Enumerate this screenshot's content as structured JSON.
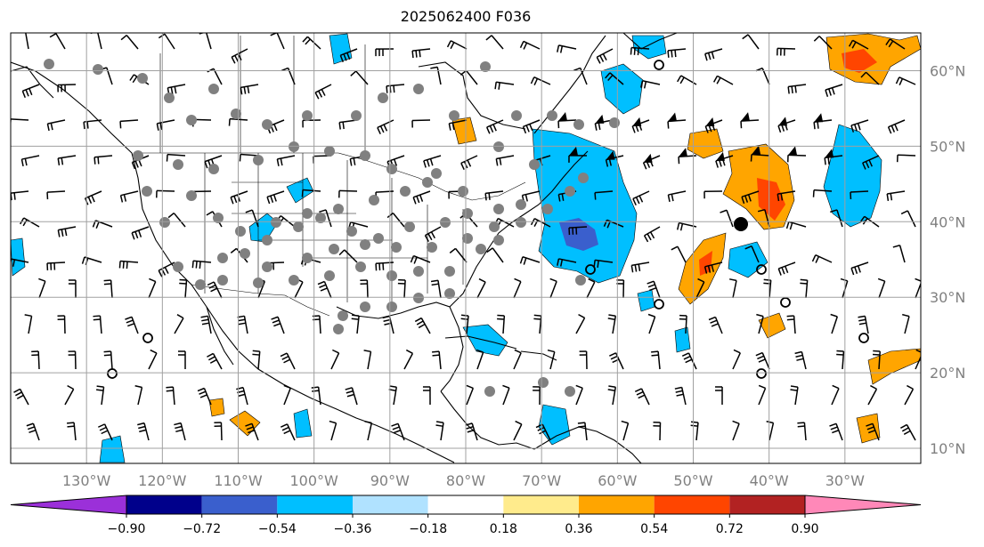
{
  "title": "2025062400 F036",
  "map": {
    "lon_range": [
      -140,
      -20
    ],
    "lat_range": [
      8,
      65
    ],
    "lon_ticks": [
      {
        "value": -130,
        "label": "130°W"
      },
      {
        "value": -120,
        "label": "120°W"
      },
      {
        "value": -110,
        "label": "110°W"
      },
      {
        "value": -100,
        "label": "100°W"
      },
      {
        "value": -90,
        "label": "90°W"
      },
      {
        "value": -80,
        "label": "80°W"
      },
      {
        "value": -70,
        "label": "70°W"
      },
      {
        "value": -60,
        "label": "60°W"
      },
      {
        "value": -50,
        "label": "50°W"
      },
      {
        "value": -40,
        "label": "40°W"
      },
      {
        "value": -30,
        "label": "30°W"
      }
    ],
    "lat_ticks": [
      {
        "value": 60,
        "label": "60°N"
      },
      {
        "value": 50,
        "label": "50°N"
      },
      {
        "value": 40,
        "label": "40°N"
      },
      {
        "value": 30,
        "label": "30°N"
      },
      {
        "value": 20,
        "label": "20°N"
      },
      {
        "value": 10,
        "label": "10°N"
      }
    ],
    "gridlines": true,
    "tick_label_color": "#808080"
  },
  "colorbar": {
    "levels": [
      "−0.90",
      "−0.72",
      "−0.54",
      "−0.36",
      "−0.18",
      "0.18",
      "0.36",
      "0.54",
      "0.72",
      "0.90"
    ],
    "colors": [
      "#9b30d9",
      "#00008b",
      "#3a5fcd",
      "#00bfff",
      "#b0e2ff",
      "#ffffff",
      "#ffeb8c",
      "#ffa500",
      "#ff4500",
      "#b22222",
      "#ff88b8"
    ],
    "extend": "both"
  },
  "fields": {
    "negative_regions_color": "#00bfff",
    "dark_negative_color": "#3a5fcd",
    "positive_regions_color": "#ffa500",
    "strong_positive_color": "#ff4500"
  },
  "markers": {
    "station_dot_color": "#808080",
    "center_marker_color": "#000000"
  }
}
